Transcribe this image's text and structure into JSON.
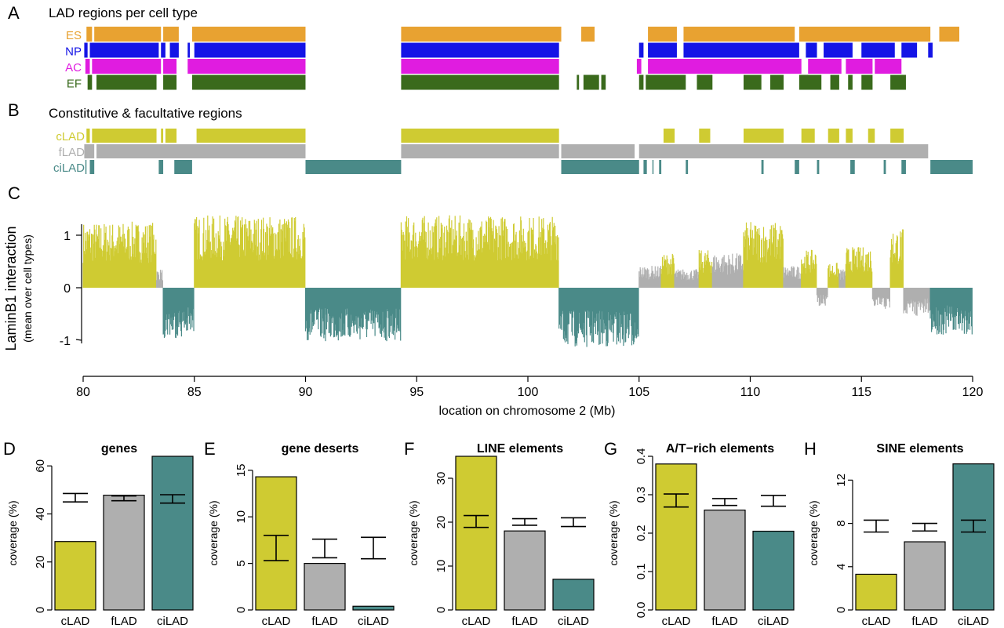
{
  "colors": {
    "ES": "#e8a231",
    "NP": "#1414e6",
    "AC": "#e01ce0",
    "EF": "#3a6a1c",
    "cLAD": "#cfcb32",
    "fLAD": "#afafaf",
    "ciLAD": "#4a8a88"
  },
  "panelA": {
    "letter": "A",
    "title": "LAD regions per cell type",
    "tracks": [
      {
        "label": "ES",
        "segments": [
          [
            80.15,
            80.4
          ],
          [
            80.5,
            83.5
          ],
          [
            83.6,
            84.3
          ],
          [
            84.9,
            90.0
          ],
          [
            94.3,
            101.5
          ],
          [
            102.4,
            103.0
          ],
          [
            105.4,
            106.7
          ],
          [
            107.0,
            112.0
          ],
          [
            112.2,
            118.1
          ],
          [
            118.5,
            119.4
          ]
        ]
      },
      {
        "label": "NP",
        "segments": [
          [
            80.05,
            80.2
          ],
          [
            80.3,
            83.4
          ],
          [
            83.5,
            83.7
          ],
          [
            83.9,
            84.3
          ],
          [
            84.7,
            84.8
          ],
          [
            85.0,
            90.0
          ],
          [
            94.3,
            101.4
          ],
          [
            105.0,
            105.2
          ],
          [
            105.4,
            106.7
          ],
          [
            107.0,
            112.2
          ],
          [
            112.5,
            113.0
          ],
          [
            113.3,
            114.6
          ],
          [
            115.0,
            116.5
          ],
          [
            116.8,
            117.5
          ],
          [
            118.0,
            118.2
          ]
        ]
      },
      {
        "label": "AC",
        "segments": [
          [
            80.1,
            80.3
          ],
          [
            80.4,
            83.5
          ],
          [
            83.6,
            84.2
          ],
          [
            84.7,
            90.0
          ],
          [
            94.3,
            101.4
          ],
          [
            104.9,
            105.1
          ],
          [
            105.4,
            112.3
          ],
          [
            112.6,
            114.1
          ],
          [
            114.3,
            115.5
          ],
          [
            115.6,
            116.8
          ]
        ]
      },
      {
        "label": "EF",
        "segments": [
          [
            80.2,
            80.4
          ],
          [
            80.6,
            83.3
          ],
          [
            83.6,
            84.2
          ],
          [
            84.9,
            90.0
          ],
          [
            94.3,
            101.4
          ],
          [
            102.2,
            102.3
          ],
          [
            102.5,
            103.2
          ],
          [
            103.3,
            103.5
          ],
          [
            105.0,
            105.2
          ],
          [
            105.3,
            107.1
          ],
          [
            107.6,
            108.3
          ],
          [
            109.7,
            110.5
          ],
          [
            110.9,
            111.5
          ],
          [
            112.2,
            113.2
          ],
          [
            113.6,
            114.0
          ],
          [
            114.4,
            114.6
          ],
          [
            115.0,
            115.5
          ],
          [
            116.3,
            117.0
          ]
        ]
      }
    ]
  },
  "panelB": {
    "letter": "B",
    "title": "Constitutive & facultative regions",
    "tracks": [
      {
        "label": "cLAD",
        "segments": [
          [
            80.15,
            80.3
          ],
          [
            80.4,
            83.3
          ],
          [
            83.5,
            83.6
          ],
          [
            83.7,
            84.2
          ],
          [
            85.1,
            90.0
          ],
          [
            94.3,
            101.4
          ],
          [
            106.1,
            106.6
          ],
          [
            107.7,
            108.2
          ],
          [
            109.7,
            111.5
          ],
          [
            112.3,
            112.9
          ],
          [
            113.5,
            114.0
          ],
          [
            114.3,
            114.6
          ],
          [
            115.3,
            115.6
          ],
          [
            116.3,
            116.9
          ]
        ]
      },
      {
        "label": "fLAD",
        "segments": [
          [
            80.05,
            80.5
          ],
          [
            80.6,
            90.0
          ],
          [
            94.3,
            101.4
          ],
          [
            101.5,
            104.8
          ],
          [
            105.0,
            118.0
          ]
        ]
      },
      {
        "label": "ciLAD",
        "segments": [
          [
            80.1,
            80.15
          ],
          [
            80.3,
            80.5
          ],
          [
            83.4,
            83.6
          ],
          [
            84.1,
            84.9
          ],
          [
            90.0,
            94.3
          ],
          [
            101.5,
            105.0
          ],
          [
            105.2,
            105.35
          ],
          [
            105.6,
            105.65
          ],
          [
            105.9,
            106.0
          ],
          [
            107.1,
            107.2
          ],
          [
            110.5,
            110.6
          ],
          [
            112.0,
            112.2
          ],
          [
            113.0,
            113.1
          ],
          [
            114.5,
            114.7
          ],
          [
            116.0,
            116.1
          ],
          [
            116.8,
            117.0
          ],
          [
            118.1,
            120.0
          ]
        ]
      }
    ]
  },
  "panelC": {
    "letter": "C",
    "ylabel": "LaminB1 interaction",
    "ylabel2": "(mean over cell types)",
    "xlabel": "location on chromosome 2 (Mb)",
    "xlim": [
      80,
      120
    ],
    "ylim": [
      -1.6,
      1.6
    ],
    "xticks": [
      80,
      85,
      90,
      95,
      100,
      105,
      110,
      115,
      120
    ],
    "yticks": [
      -1,
      0,
      1
    ],
    "regions": [
      {
        "x": [
          80.0,
          83.3
        ],
        "class": "cLAD",
        "level": 1.05
      },
      {
        "x": [
          83.3,
          83.6
        ],
        "class": "fLAD",
        "level": 0.3
      },
      {
        "x": [
          83.6,
          84.2
        ],
        "class": "ciLAD",
        "level": -0.8
      },
      {
        "x": [
          84.2,
          85.0
        ],
        "class": "ciLAD",
        "level": -0.8
      },
      {
        "x": [
          85.0,
          90.0
        ],
        "class": "cLAD",
        "level": 1.15
      },
      {
        "x": [
          90.0,
          94.3
        ],
        "class": "ciLAD",
        "level": -0.85
      },
      {
        "x": [
          94.3,
          101.4
        ],
        "class": "cLAD",
        "level": 1.15
      },
      {
        "x": [
          101.4,
          105.0
        ],
        "class": "ciLAD",
        "level": -0.95
      },
      {
        "x": [
          105.0,
          106.0
        ],
        "class": "fLAD",
        "level": 0.35
      },
      {
        "x": [
          106.0,
          106.6
        ],
        "class": "cLAD",
        "level": 0.55
      },
      {
        "x": [
          106.6,
          107.7
        ],
        "class": "fLAD",
        "level": 0.3
      },
      {
        "x": [
          107.7,
          108.3
        ],
        "class": "cLAD",
        "level": 0.6
      },
      {
        "x": [
          108.3,
          109.7
        ],
        "class": "fLAD",
        "level": 0.55
      },
      {
        "x": [
          109.7,
          111.5
        ],
        "class": "cLAD",
        "level": 1.05
      },
      {
        "x": [
          111.5,
          112.3
        ],
        "class": "fLAD",
        "level": 0.35
      },
      {
        "x": [
          112.3,
          113.0
        ],
        "class": "cLAD",
        "level": 0.6
      },
      {
        "x": [
          113.0,
          113.5
        ],
        "class": "fLAD",
        "level": -0.3
      },
      {
        "x": [
          113.5,
          114.0
        ],
        "class": "cLAD",
        "level": 0.4
      },
      {
        "x": [
          114.0,
          114.3
        ],
        "class": "fLAD",
        "level": 0.3
      },
      {
        "x": [
          114.3,
          115.5
        ],
        "class": "cLAD",
        "level": 0.65
      },
      {
        "x": [
          115.5,
          116.3
        ],
        "class": "fLAD",
        "level": -0.35
      },
      {
        "x": [
          116.3,
          116.9
        ],
        "class": "cLAD",
        "level": 0.95
      },
      {
        "x": [
          116.9,
          118.1
        ],
        "class": "fLAD",
        "level": -0.45
      },
      {
        "x": [
          118.1,
          120.0
        ],
        "class": "ciLAD",
        "level": -0.75
      }
    ]
  },
  "barPanels": [
    {
      "letter": "D",
      "title": "genes",
      "ylabel": "coverage (%)",
      "ylim": [
        0,
        64
      ],
      "yticks": [
        0,
        20,
        40,
        60
      ],
      "ytick_labels": [
        "0",
        "20",
        "40",
        "60"
      ],
      "categories": [
        "cLAD",
        "fLAD",
        "ciLAD"
      ],
      "values": [
        28.5,
        47.8,
        64.0
      ],
      "errorbars": [
        [
          45.0,
          48.5
        ],
        [
          45.5,
          47.5
        ],
        [
          44.5,
          48.0
        ]
      ]
    },
    {
      "letter": "E",
      "title": "gene deserts",
      "ylabel": "coverage (%)",
      "ylim": [
        0,
        16.5
      ],
      "yticks": [
        0,
        5,
        10,
        15
      ],
      "ytick_labels": [
        "0",
        "5",
        "10",
        "15"
      ],
      "categories": [
        "cLAD",
        "fLAD",
        "ciLAD"
      ],
      "values": [
        14.3,
        5.0,
        0.4
      ],
      "errorbars": [
        [
          5.3,
          8.0
        ],
        [
          5.6,
          7.6
        ],
        [
          5.5,
          7.8
        ]
      ]
    },
    {
      "letter": "F",
      "title": "LINE elements",
      "ylabel": "coverage (%)",
      "ylim": [
        0,
        35
      ],
      "yticks": [
        0,
        10,
        20,
        30
      ],
      "ytick_labels": [
        "0",
        "10",
        "20",
        "30"
      ],
      "categories": [
        "cLAD",
        "fLAD",
        "ciLAD"
      ],
      "values": [
        35.0,
        18.0,
        7.0
      ],
      "errorbars": [
        [
          18.8,
          21.5
        ],
        [
          19.3,
          20.8
        ],
        [
          19.0,
          21.0
        ]
      ]
    },
    {
      "letter": "G",
      "title": "A/T−rich elements",
      "ylabel": "coverage (%)",
      "ylim": [
        0,
        0.4
      ],
      "yticks": [
        0,
        0.1,
        0.2,
        0.3,
        0.4
      ],
      "ytick_labels": [
        "0.0",
        "0.1",
        "0.2",
        "0.3",
        "0.4"
      ],
      "categories": [
        "cLAD",
        "fLAD",
        "ciLAD"
      ],
      "values": [
        0.38,
        0.26,
        0.205
      ],
      "errorbars": [
        [
          0.268,
          0.302
        ],
        [
          0.272,
          0.29
        ],
        [
          0.27,
          0.298
        ]
      ]
    },
    {
      "letter": "H",
      "title": "SINE elements",
      "ylabel": "coverage (%)",
      "ylim": [
        0,
        14.2
      ],
      "yticks": [
        0,
        4,
        8,
        12
      ],
      "ytick_labels": [
        "0",
        "4",
        "8",
        "12"
      ],
      "categories": [
        "cLAD",
        "fLAD",
        "ciLAD"
      ],
      "values": [
        3.3,
        6.3,
        13.5
      ],
      "errorbars": [
        [
          7.2,
          8.3
        ],
        [
          7.3,
          8.0
        ],
        [
          7.2,
          8.3
        ]
      ]
    }
  ]
}
